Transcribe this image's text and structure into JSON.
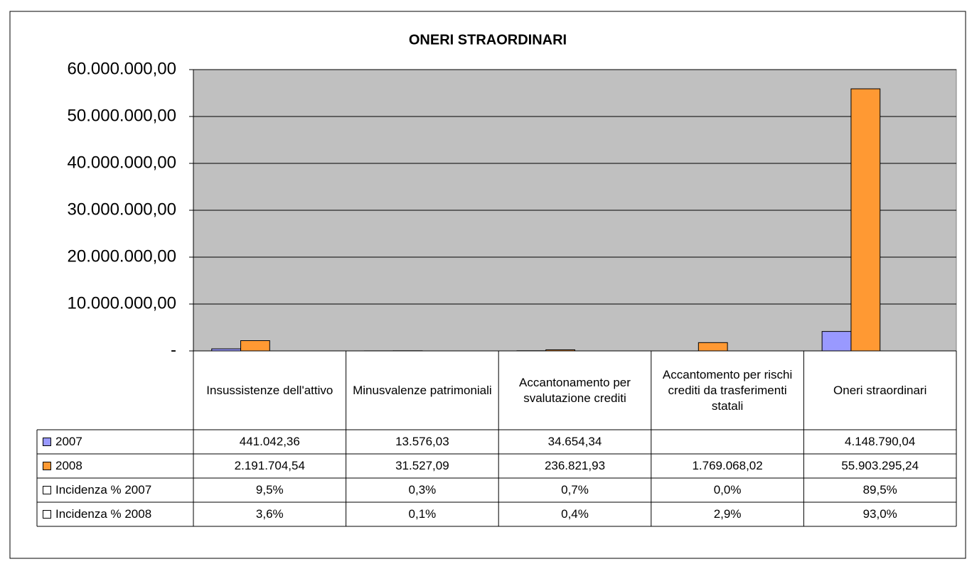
{
  "chart_data": {
    "type": "bar",
    "title": "ONERI STRAORDINARI",
    "categories": [
      "Insussistenze dell'attivo",
      "Minusvalenze patrimoniali",
      "Accantonamento per svalutazione crediti",
      "Accantomento per rischi crediti da trasferimenti statali",
      "Oneri straordinari"
    ],
    "series": [
      {
        "name": "2007",
        "color": "#9999ff",
        "values": [
          441042.36,
          13576.03,
          34654.34,
          null,
          4148790.04
        ],
        "value_labels": [
          "441.042,36",
          "13.576,03",
          "34.654,34",
          null,
          "4.148.790,04"
        ]
      },
      {
        "name": "2008",
        "color": "#ff9933",
        "values": [
          2191704.54,
          31527.09,
          236821.93,
          1769068.02,
          55903295.24
        ],
        "value_labels": [
          "2.191.704,54",
          "31.527,09",
          "236.821,93",
          "1.769.068,02",
          "55.903.295,24"
        ]
      },
      {
        "name": "Incidenza % 2007",
        "color": "#ffffff",
        "values": [
          9.5,
          0.3,
          0.7,
          0.0,
          89.5
        ],
        "value_labels": [
          "9,5%",
          "0,3%",
          "0,7%",
          "0,0%",
          "89,5%"
        ]
      },
      {
        "name": "Incidenza % 2008",
        "color": "#ffffff",
        "values": [
          3.6,
          0.1,
          0.4,
          2.9,
          93.0
        ],
        "value_labels": [
          "3,6%",
          "0,1%",
          "0,4%",
          "2,9%",
          "93,0%"
        ]
      }
    ],
    "ylim": [
      0,
      60000000
    ],
    "yticks": [
      {
        "value": 0,
        "label": "-"
      },
      {
        "value": 10000000,
        "label": "10.000.000,00"
      },
      {
        "value": 20000000,
        "label": "20.000.000,00"
      },
      {
        "value": 30000000,
        "label": "30.000.000,00"
      },
      {
        "value": 40000000,
        "label": "40.000.000,00"
      },
      {
        "value": 50000000,
        "label": "50.000.000,00"
      },
      {
        "value": 60000000,
        "label": "60.000.000,00"
      }
    ],
    "grid": true
  }
}
